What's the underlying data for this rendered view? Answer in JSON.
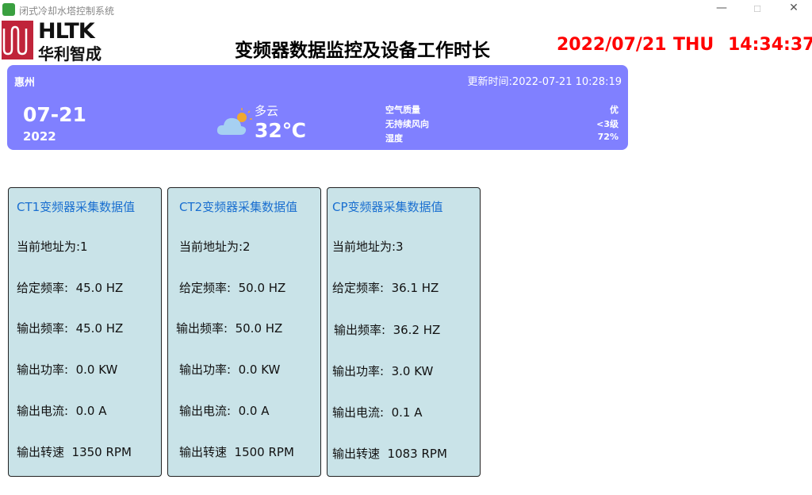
{
  "window": {
    "title": "闭式冷却水塔控制系统",
    "minimize": "—",
    "maximize": "☐",
    "close": "✕"
  },
  "logo": {
    "en": "HLTK",
    "cn": "华利智成"
  },
  "header": {
    "title": "变频器数据监控及设备工作时长",
    "date": "2022/07/21",
    "weekday": "THU",
    "time": "14:34:37"
  },
  "weather": {
    "city": "惠州",
    "updated": "更新时间:2022-07-21 10:28:19",
    "date": "07-21",
    "year": "2022",
    "condition": "多云",
    "icon": "partly-cloudy-icon",
    "temperature": "32℃",
    "rows": [
      {
        "label": "空气质量",
        "value": "优"
      },
      {
        "label": "无持续风向",
        "value": "<3级"
      },
      {
        "label": "湿度",
        "value": "72%"
      }
    ]
  },
  "cards": [
    {
      "title": "CT1变频器采集数据值",
      "rows": [
        "当前地址为:1",
        "给定频率:  45.0 HZ",
        "输出频率:  45.0 HZ",
        "输出功率:  0.0 KW",
        "输出电流:  0.0 A",
        "输出转速  1350 RPM"
      ]
    },
    {
      "title": "CT2变频器采集数据值",
      "rows": [
        "当前地址为:2",
        "给定频率:  50.0 HZ",
        "输出频率:  50.0 HZ",
        "输出功率:  0.0 KW",
        "输出电流:  0.0 A",
        "输出转速  1500 RPM"
      ]
    },
    {
      "title": "CP变频器采集数据值",
      "rows": [
        "当前地址为:3",
        "给定频率:  36.1 HZ",
        "输出频率:  36.2 HZ",
        "输出功率:  3.0 KW",
        "输出电流:  0.1 A",
        "输出转速  1083 RPM"
      ]
    }
  ]
}
